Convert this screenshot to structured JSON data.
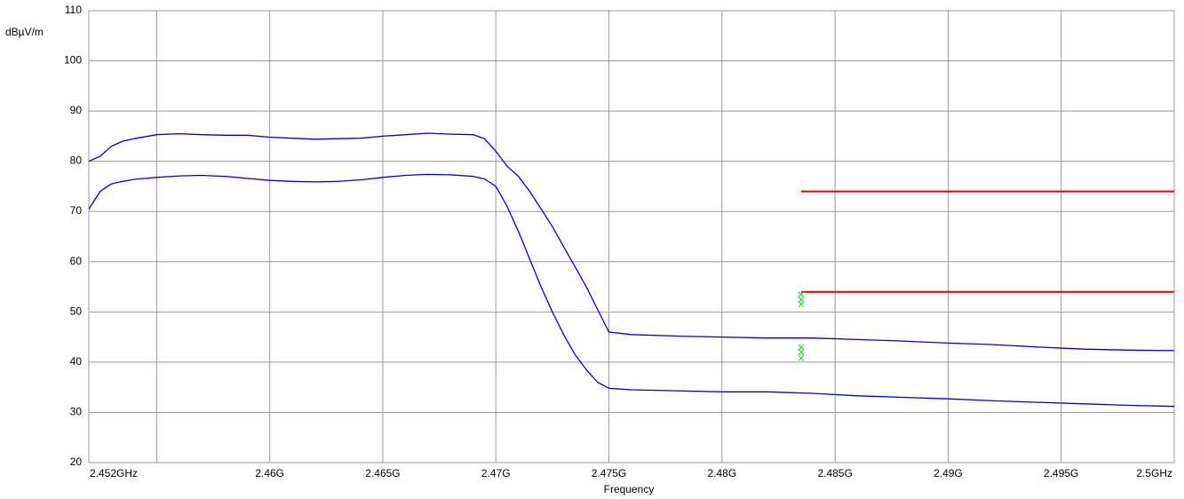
{
  "chart_data": {
    "type": "line",
    "title": "",
    "xlabel": "Frequency",
    "ylabel": "dBµV/m",
    "xlim": [
      2.452,
      2.5
    ],
    "ylim": [
      20,
      110
    ],
    "grid": true,
    "x_ticks": [
      {
        "value": 2.452,
        "label": "2.452GHz"
      },
      {
        "value": 2.455,
        "label": ""
      },
      {
        "value": 2.46,
        "label": "2.46G"
      },
      {
        "value": 2.465,
        "label": "2.465G"
      },
      {
        "value": 2.47,
        "label": "2.47G"
      },
      {
        "value": 2.475,
        "label": "2.475G"
      },
      {
        "value": 2.48,
        "label": "2.48G"
      },
      {
        "value": 2.485,
        "label": "2.485G"
      },
      {
        "value": 2.49,
        "label": "2.49G"
      },
      {
        "value": 2.495,
        "label": "2.495G"
      },
      {
        "value": 2.5,
        "label": "2.5GHz"
      }
    ],
    "y_ticks": [
      20,
      30,
      40,
      50,
      60,
      70,
      80,
      90,
      100,
      110
    ],
    "colors": {
      "trace": "#0000cc",
      "limit": "#e00000",
      "marker": "#33dd33",
      "grid": "#999999"
    },
    "series": [
      {
        "color": "#0000cc",
        "x": [
          2.452,
          2.4525,
          2.453,
          2.4535,
          2.454,
          2.455,
          2.456,
          2.457,
          2.458,
          2.459,
          2.46,
          2.461,
          2.462,
          2.463,
          2.464,
          2.465,
          2.466,
          2.467,
          2.468,
          2.469,
          2.4695,
          2.47,
          2.4705,
          2.471,
          2.4715,
          2.472,
          2.4725,
          2.473,
          2.4735,
          2.474,
          2.4745,
          2.475,
          2.476,
          2.478,
          2.48,
          2.482,
          2.484,
          2.486,
          2.488,
          2.49,
          2.492,
          2.494,
          2.496,
          2.498,
          2.5
        ],
        "y": [
          80,
          81,
          83,
          84,
          84.5,
          85.3,
          85.5,
          85.3,
          85.2,
          85.2,
          84.8,
          84.6,
          84.4,
          84.5,
          84.6,
          85,
          85.3,
          85.6,
          85.4,
          85.3,
          84.5,
          82,
          79,
          77,
          74,
          70.5,
          67,
          63,
          59,
          55,
          50.5,
          46,
          45.5,
          45.2,
          45,
          44.8,
          44.8,
          44.5,
          44.2,
          43.8,
          43.5,
          43,
          42.6,
          42.4,
          42.3
        ]
      },
      {
        "color": "#0000cc",
        "x": [
          2.452,
          2.4525,
          2.453,
          2.4535,
          2.454,
          2.455,
          2.456,
          2.457,
          2.458,
          2.459,
          2.46,
          2.461,
          2.462,
          2.463,
          2.464,
          2.465,
          2.466,
          2.467,
          2.468,
          2.469,
          2.4695,
          2.47,
          2.4705,
          2.471,
          2.4715,
          2.472,
          2.4725,
          2.473,
          2.4735,
          2.474,
          2.4745,
          2.475,
          2.476,
          2.478,
          2.48,
          2.482,
          2.484,
          2.486,
          2.488,
          2.49,
          2.492,
          2.494,
          2.496,
          2.498,
          2.5
        ],
        "y": [
          70.5,
          74,
          75.5,
          76,
          76.4,
          76.8,
          77.1,
          77.2,
          77,
          76.6,
          76.2,
          76,
          75.9,
          76,
          76.3,
          76.8,
          77.2,
          77.4,
          77.3,
          77,
          76.5,
          75,
          71,
          66,
          60.5,
          55,
          50,
          45.5,
          41.5,
          38.5,
          36,
          34.8,
          34.5,
          34.3,
          34.1,
          34.1,
          33.8,
          33.3,
          33,
          32.7,
          32.3,
          32,
          31.7,
          31.4,
          31.2
        ]
      }
    ],
    "limit_lines": [
      {
        "x": [
          2.4835,
          2.5
        ],
        "y": [
          74,
          74
        ],
        "color": "#e00000"
      },
      {
        "x": [
          2.4835,
          2.5
        ],
        "y": [
          54,
          54
        ],
        "color": "#e00000"
      }
    ],
    "markers": [
      {
        "x": 2.4835,
        "y": 53.5
      },
      {
        "x": 2.4835,
        "y": 52.5
      },
      {
        "x": 2.4835,
        "y": 51.5
      },
      {
        "x": 2.4835,
        "y": 43
      },
      {
        "x": 2.4835,
        "y": 42
      },
      {
        "x": 2.4835,
        "y": 40.8
      }
    ]
  }
}
